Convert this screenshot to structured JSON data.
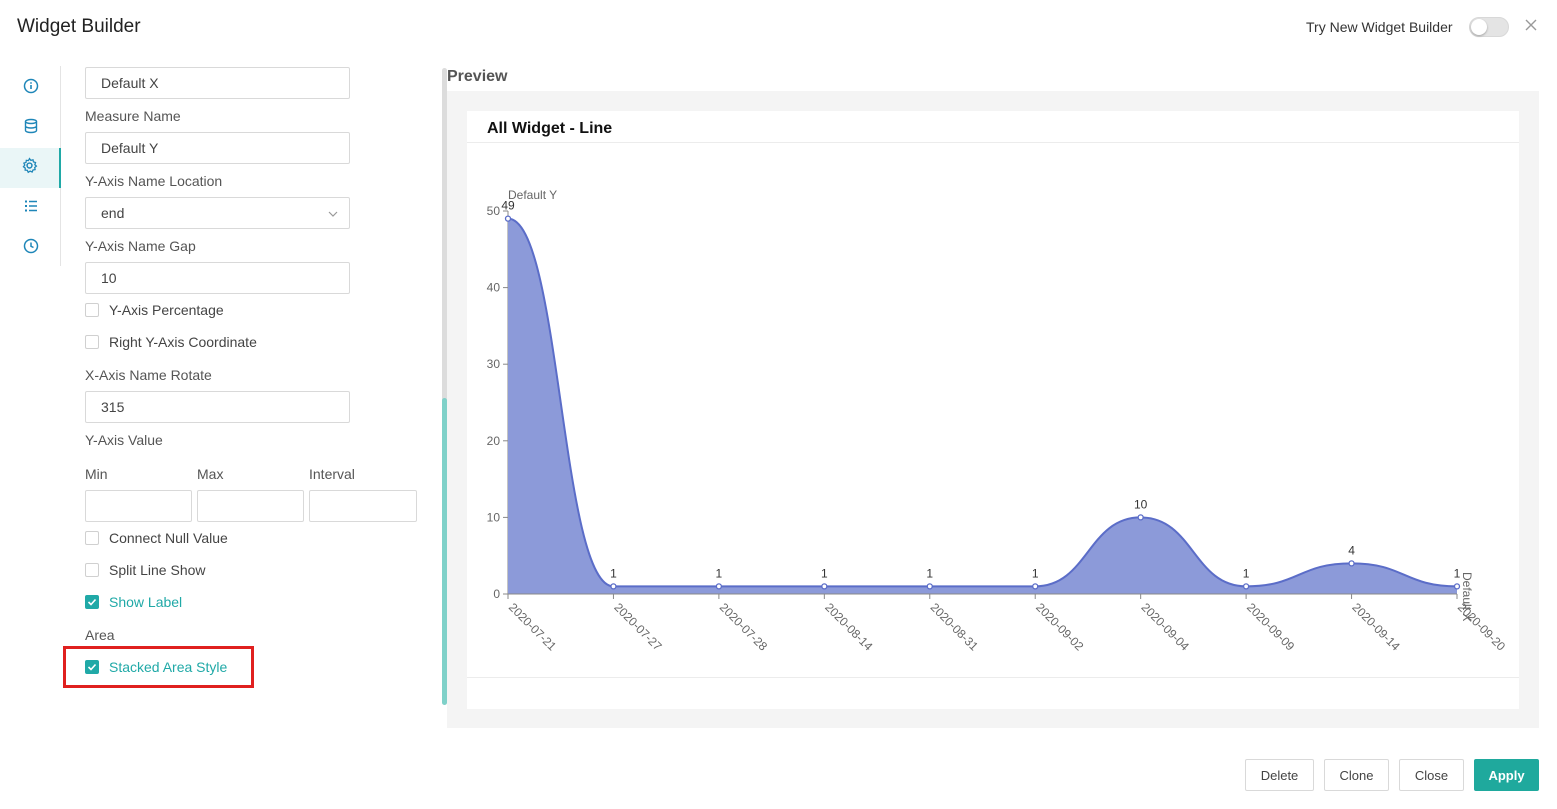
{
  "header": {
    "title": "Widget Builder",
    "try_new_label": "Try New Widget Builder",
    "toggle_on": false
  },
  "sidebar": {
    "items": [
      {
        "icon": "info-icon",
        "active": false
      },
      {
        "icon": "database-icon",
        "active": false
      },
      {
        "icon": "gear-icon",
        "active": true
      },
      {
        "icon": "list-icon",
        "active": false
      },
      {
        "icon": "clock-icon",
        "active": false
      }
    ]
  },
  "form": {
    "dimension_name_value": "Default X",
    "measure_name_label": "Measure Name",
    "measure_name_value": "Default Y",
    "y_axis_name_location_label": "Y-Axis Name Location",
    "y_axis_name_location_value": "end",
    "y_axis_name_gap_label": "Y-Axis Name Gap",
    "y_axis_name_gap_value": "10",
    "y_axis_percentage_label": "Y-Axis Percentage",
    "right_y_axis_label": "Right Y-Axis Coordinate",
    "x_axis_name_rotate_label": "X-Axis Name Rotate",
    "x_axis_name_rotate_value": "315",
    "y_axis_value_label": "Y-Axis Value",
    "min_label": "Min",
    "max_label": "Max",
    "interval_label": "Interval",
    "connect_null_label": "Connect Null Value",
    "split_line_label": "Split Line Show",
    "show_label_label": "Show Label",
    "area_label": "Area",
    "stacked_area_label": "Stacked Area Style"
  },
  "preview": {
    "label": "Preview",
    "card_title": "All Widget - Line"
  },
  "chart_data": {
    "type": "area",
    "categories": [
      "2020-07-21",
      "2020-07-27",
      "2020-07-28",
      "2020-08-14",
      "2020-08-31",
      "2020-09-02",
      "2020-09-04",
      "2020-09-09",
      "2020-09-14",
      "2020-09-20"
    ],
    "series": [
      {
        "values": [
          49,
          1,
          1,
          1,
          1,
          1,
          10,
          1,
          4,
          1
        ]
      }
    ],
    "ylabel": "Default Y",
    "xlabel": "Default X",
    "ylim": [
      0,
      50
    ],
    "yticks": [
      0,
      10,
      20,
      30,
      40,
      50
    ],
    "color": "#5b6dc8",
    "fill": "#8c9ad9",
    "data_labels": true
  },
  "footer": {
    "delete_label": "Delete",
    "clone_label": "Clone",
    "close_label": "Close",
    "apply_label": "Apply"
  },
  "colors": {
    "accent": "#20a9a7",
    "highlight": "#e0201f"
  }
}
